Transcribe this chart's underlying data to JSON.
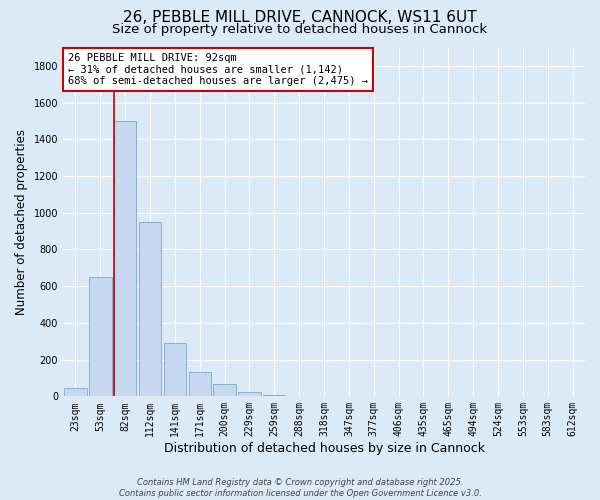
{
  "title": "26, PEBBLE MILL DRIVE, CANNOCK, WS11 6UT",
  "subtitle": "Size of property relative to detached houses in Cannock",
  "xlabel": "Distribution of detached houses by size in Cannock",
  "ylabel": "Number of detached properties",
  "bar_labels": [
    "23sqm",
    "53sqm",
    "82sqm",
    "112sqm",
    "141sqm",
    "171sqm",
    "200sqm",
    "229sqm",
    "259sqm",
    "288sqm",
    "318sqm",
    "347sqm",
    "377sqm",
    "406sqm",
    "435sqm",
    "465sqm",
    "494sqm",
    "524sqm",
    "553sqm",
    "583sqm",
    "612sqm"
  ],
  "bar_values": [
    45,
    650,
    1500,
    950,
    290,
    135,
    65,
    22,
    5,
    1,
    0,
    0,
    1,
    0,
    0,
    0,
    0,
    0,
    0,
    0,
    0
  ],
  "bar_color": "#c6d9f0",
  "bar_edge_color": "#7ba7cc",
  "ylim": [
    0,
    1900
  ],
  "yticks": [
    0,
    200,
    400,
    600,
    800,
    1000,
    1200,
    1400,
    1600,
    1800
  ],
  "vline_x_index": 2,
  "vline_color": "#cc0000",
  "annotation_title": "26 PEBBLE MILL DRIVE: 92sqm",
  "annotation_line1": "← 31% of detached houses are smaller (1,142)",
  "annotation_line2": "68% of semi-detached houses are larger (2,475) →",
  "footer_line1": "Contains HM Land Registry data © Crown copyright and database right 2025.",
  "footer_line2": "Contains public sector information licensed under the Open Government Licence v3.0.",
  "background_color": "#dce9f7",
  "plot_bg_color": "#dce9f7",
  "grid_color": "#ffffff",
  "title_fontsize": 11,
  "subtitle_fontsize": 9.5,
  "xlabel_fontsize": 9,
  "ylabel_fontsize": 8.5,
  "tick_fontsize": 7,
  "annotation_fontsize": 7.5,
  "footer_fontsize": 6
}
